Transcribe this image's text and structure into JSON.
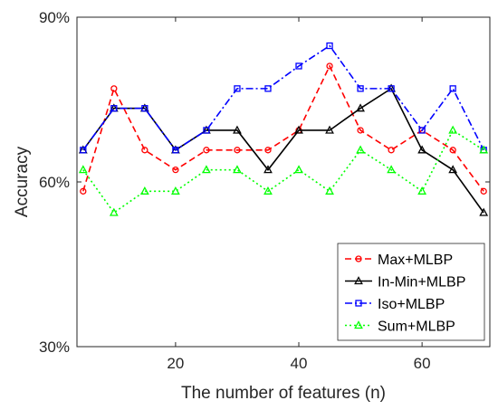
{
  "chart_data": {
    "type": "line",
    "xlabel": "The number of features (n)",
    "ylabel": "Accuracy",
    "xlim": [
      4,
      71
    ],
    "ylim": [
      30,
      90
    ],
    "x_ticks": [
      20,
      40,
      60
    ],
    "y_ticks": [
      30,
      60,
      90
    ],
    "x_tick_labels": [
      "20",
      "40",
      "60"
    ],
    "y_tick_labels": [
      "30%",
      "60%",
      "90%"
    ],
    "grid": false,
    "legend_position": "bottom-right",
    "x": [
      5,
      10,
      15,
      20,
      25,
      30,
      35,
      40,
      45,
      50,
      55,
      60,
      65,
      70
    ],
    "series": [
      {
        "name": "Max+MLBP",
        "color": "#ff0000",
        "line_style": "dashed",
        "marker": "circle",
        "values": [
          58.3,
          77.0,
          65.8,
          62.2,
          65.8,
          65.8,
          65.8,
          69.4,
          81.1,
          69.4,
          65.8,
          69.4,
          65.8,
          58.3
        ]
      },
      {
        "name": "In-Min+MLBP",
        "color": "#000000",
        "line_style": "solid",
        "marker": "triangle",
        "values": [
          65.8,
          73.4,
          73.4,
          65.8,
          69.4,
          69.4,
          62.2,
          69.4,
          69.4,
          73.4,
          77.0,
          65.8,
          62.2,
          54.4
        ]
      },
      {
        "name": "Iso+MLBP",
        "color": "#0000ff",
        "line_style": "dashdot",
        "marker": "square",
        "values": [
          65.8,
          73.4,
          73.4,
          65.8,
          69.4,
          77.0,
          77.0,
          81.1,
          84.8,
          77.0,
          77.0,
          69.4,
          77.0,
          65.8
        ]
      },
      {
        "name": "Sum+MLBP",
        "color": "#00ff00",
        "line_style": "dotted",
        "marker": "triangle",
        "values": [
          62.2,
          54.4,
          58.3,
          58.3,
          62.2,
          62.2,
          58.3,
          62.2,
          58.3,
          65.8,
          62.2,
          58.3,
          69.4,
          65.8
        ]
      }
    ]
  }
}
